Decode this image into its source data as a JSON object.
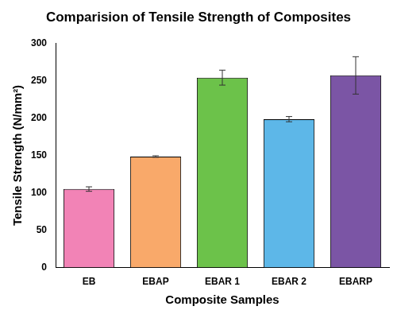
{
  "chart_data": {
    "type": "bar",
    "title": "Comparision of Tensile Strength of Composites",
    "x_label": "Composite Samples",
    "y_label": "Tensile Strength (N/mm²)",
    "categories": [
      "EB",
      "EBAP",
      "EBAR 1",
      "EBAR 2",
      "EBARP"
    ],
    "values": [
      105,
      148.5,
      254,
      198.5,
      257
    ],
    "errors": [
      3,
      1,
      10,
      3.5,
      25
    ],
    "colors": [
      "#f283b6",
      "#f9a96a",
      "#6cc24a",
      "#5db7e8",
      "#7b55a5"
    ],
    "ylim": [
      0,
      300
    ],
    "yticks": [
      0,
      50,
      100,
      150,
      200,
      250,
      300
    ],
    "grid": false
  }
}
